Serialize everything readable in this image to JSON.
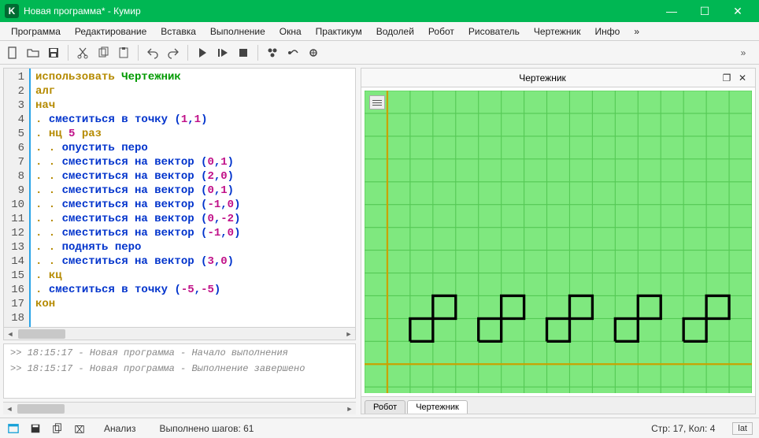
{
  "titlebar": {
    "app_icon_letter": "K",
    "title": "Новая программа* - Кумир"
  },
  "menu": [
    "Программа",
    "Редактирование",
    "Вставка",
    "Выполнение",
    "Окна",
    "Практикум",
    "Водолей",
    "Робот",
    "Рисователь",
    "Чертежник",
    "Инфо",
    "»"
  ],
  "editor": {
    "line_count": 18,
    "lines": [
      [
        {
          "t": "использовать ",
          "c": "kw"
        },
        {
          "t": "Чертежник",
          "c": "mod"
        }
      ],
      [
        {
          "t": "алг",
          "c": "kw"
        }
      ],
      [
        {
          "t": "нач",
          "c": "kw"
        }
      ],
      [
        {
          "t": ". ",
          "c": "dot"
        },
        {
          "t": "сместиться в точку ",
          "c": "fn"
        },
        {
          "t": "(",
          "c": "paren"
        },
        {
          "t": "1",
          "c": "num"
        },
        {
          "t": ",",
          "c": "paren"
        },
        {
          "t": "1",
          "c": "num"
        },
        {
          "t": ")",
          "c": "paren"
        }
      ],
      [
        {
          "t": ". ",
          "c": "dot"
        },
        {
          "t": "нц ",
          "c": "kw"
        },
        {
          "t": "5",
          "c": "num"
        },
        {
          "t": " раз",
          "c": "kw"
        }
      ],
      [
        {
          "t": ". . ",
          "c": "dot"
        },
        {
          "t": "опустить перо",
          "c": "fn"
        }
      ],
      [
        {
          "t": ". . ",
          "c": "dot"
        },
        {
          "t": "сместиться на вектор ",
          "c": "fn"
        },
        {
          "t": "(",
          "c": "paren"
        },
        {
          "t": "0",
          "c": "num"
        },
        {
          "t": ",",
          "c": "paren"
        },
        {
          "t": "1",
          "c": "num"
        },
        {
          "t": ")",
          "c": "paren"
        }
      ],
      [
        {
          "t": ". . ",
          "c": "dot"
        },
        {
          "t": "сместиться на вектор ",
          "c": "fn"
        },
        {
          "t": "(",
          "c": "paren"
        },
        {
          "t": "2",
          "c": "num"
        },
        {
          "t": ",",
          "c": "paren"
        },
        {
          "t": "0",
          "c": "num"
        },
        {
          "t": ")",
          "c": "paren"
        }
      ],
      [
        {
          "t": ". . ",
          "c": "dot"
        },
        {
          "t": "сместиться на вектор ",
          "c": "fn"
        },
        {
          "t": "(",
          "c": "paren"
        },
        {
          "t": "0",
          "c": "num"
        },
        {
          "t": ",",
          "c": "paren"
        },
        {
          "t": "1",
          "c": "num"
        },
        {
          "t": ")",
          "c": "paren"
        }
      ],
      [
        {
          "t": ". . ",
          "c": "dot"
        },
        {
          "t": "сместиться на вектор ",
          "c": "fn"
        },
        {
          "t": "(",
          "c": "paren"
        },
        {
          "t": "-1",
          "c": "num"
        },
        {
          "t": ",",
          "c": "paren"
        },
        {
          "t": "0",
          "c": "num"
        },
        {
          "t": ")",
          "c": "paren"
        }
      ],
      [
        {
          "t": ". . ",
          "c": "dot"
        },
        {
          "t": "сместиться на вектор ",
          "c": "fn"
        },
        {
          "t": "(",
          "c": "paren"
        },
        {
          "t": "0",
          "c": "num"
        },
        {
          "t": ",",
          "c": "paren"
        },
        {
          "t": "-2",
          "c": "num"
        },
        {
          "t": ")",
          "c": "paren"
        }
      ],
      [
        {
          "t": ". . ",
          "c": "dot"
        },
        {
          "t": "сместиться на вектор ",
          "c": "fn"
        },
        {
          "t": "(",
          "c": "paren"
        },
        {
          "t": "-1",
          "c": "num"
        },
        {
          "t": ",",
          "c": "paren"
        },
        {
          "t": "0",
          "c": "num"
        },
        {
          "t": ")",
          "c": "paren"
        }
      ],
      [
        {
          "t": ". . ",
          "c": "dot"
        },
        {
          "t": "поднять перо",
          "c": "fn"
        }
      ],
      [
        {
          "t": ". . ",
          "c": "dot"
        },
        {
          "t": "сместиться на вектор ",
          "c": "fn"
        },
        {
          "t": "(",
          "c": "paren"
        },
        {
          "t": "3",
          "c": "num"
        },
        {
          "t": ",",
          "c": "paren"
        },
        {
          "t": "0",
          "c": "num"
        },
        {
          "t": ")",
          "c": "paren"
        }
      ],
      [
        {
          "t": ". ",
          "c": "dot"
        },
        {
          "t": "кц",
          "c": "kw"
        }
      ],
      [
        {
          "t": ". ",
          "c": "dot"
        },
        {
          "t": "сместиться в точку ",
          "c": "fn"
        },
        {
          "t": "(",
          "c": "paren"
        },
        {
          "t": "-5",
          "c": "num"
        },
        {
          "t": ",",
          "c": "paren"
        },
        {
          "t": "-5",
          "c": "num"
        },
        {
          "t": ")",
          "c": "paren"
        }
      ],
      [
        {
          "t": "кон",
          "c": "kw"
        }
      ],
      [
        {
          "t": "",
          "c": ""
        }
      ]
    ]
  },
  "console": [
    ">> 18:15:17 - Новая программа - Начало выполнения",
    ">> 18:15:17 - Новая программа - Выполнение завершено"
  ],
  "drafter": {
    "title": "Чертежник",
    "tabs": [
      "Робот",
      "Чертежник"
    ],
    "active_tab": 1,
    "grid": {
      "cell": 26,
      "cols": 17,
      "rows": 16,
      "origin_col": 1,
      "origin_row": 12,
      "bg_color": "#7fe87f",
      "grid_color": "#55c955",
      "axis_color": "#c9a200",
      "draw_color": "#000000",
      "line_width": 3
    },
    "shapes": [
      {
        "start": [
          1,
          1
        ],
        "moves": [
          [
            0,
            1
          ],
          [
            2,
            0
          ],
          [
            0,
            1
          ],
          [
            -1,
            0
          ],
          [
            0,
            -2
          ],
          [
            -1,
            0
          ]
        ]
      },
      {
        "start": [
          4,
          1
        ],
        "moves": [
          [
            0,
            1
          ],
          [
            2,
            0
          ],
          [
            0,
            1
          ],
          [
            -1,
            0
          ],
          [
            0,
            -2
          ],
          [
            -1,
            0
          ]
        ]
      },
      {
        "start": [
          7,
          1
        ],
        "moves": [
          [
            0,
            1
          ],
          [
            2,
            0
          ],
          [
            0,
            1
          ],
          [
            -1,
            0
          ],
          [
            0,
            -2
          ],
          [
            -1,
            0
          ]
        ]
      },
      {
        "start": [
          10,
          1
        ],
        "moves": [
          [
            0,
            1
          ],
          [
            2,
            0
          ],
          [
            0,
            1
          ],
          [
            -1,
            0
          ],
          [
            0,
            -2
          ],
          [
            -1,
            0
          ]
        ]
      },
      {
        "start": [
          13,
          1
        ],
        "moves": [
          [
            0,
            1
          ],
          [
            2,
            0
          ],
          [
            0,
            1
          ],
          [
            -1,
            0
          ],
          [
            0,
            -2
          ],
          [
            -1,
            0
          ]
        ]
      }
    ]
  },
  "statusbar": {
    "analysis": "Анализ",
    "steps": "Выполнено шагов: 61",
    "cursor": "Стр: 17, Кол: 4",
    "mode": "lat"
  }
}
